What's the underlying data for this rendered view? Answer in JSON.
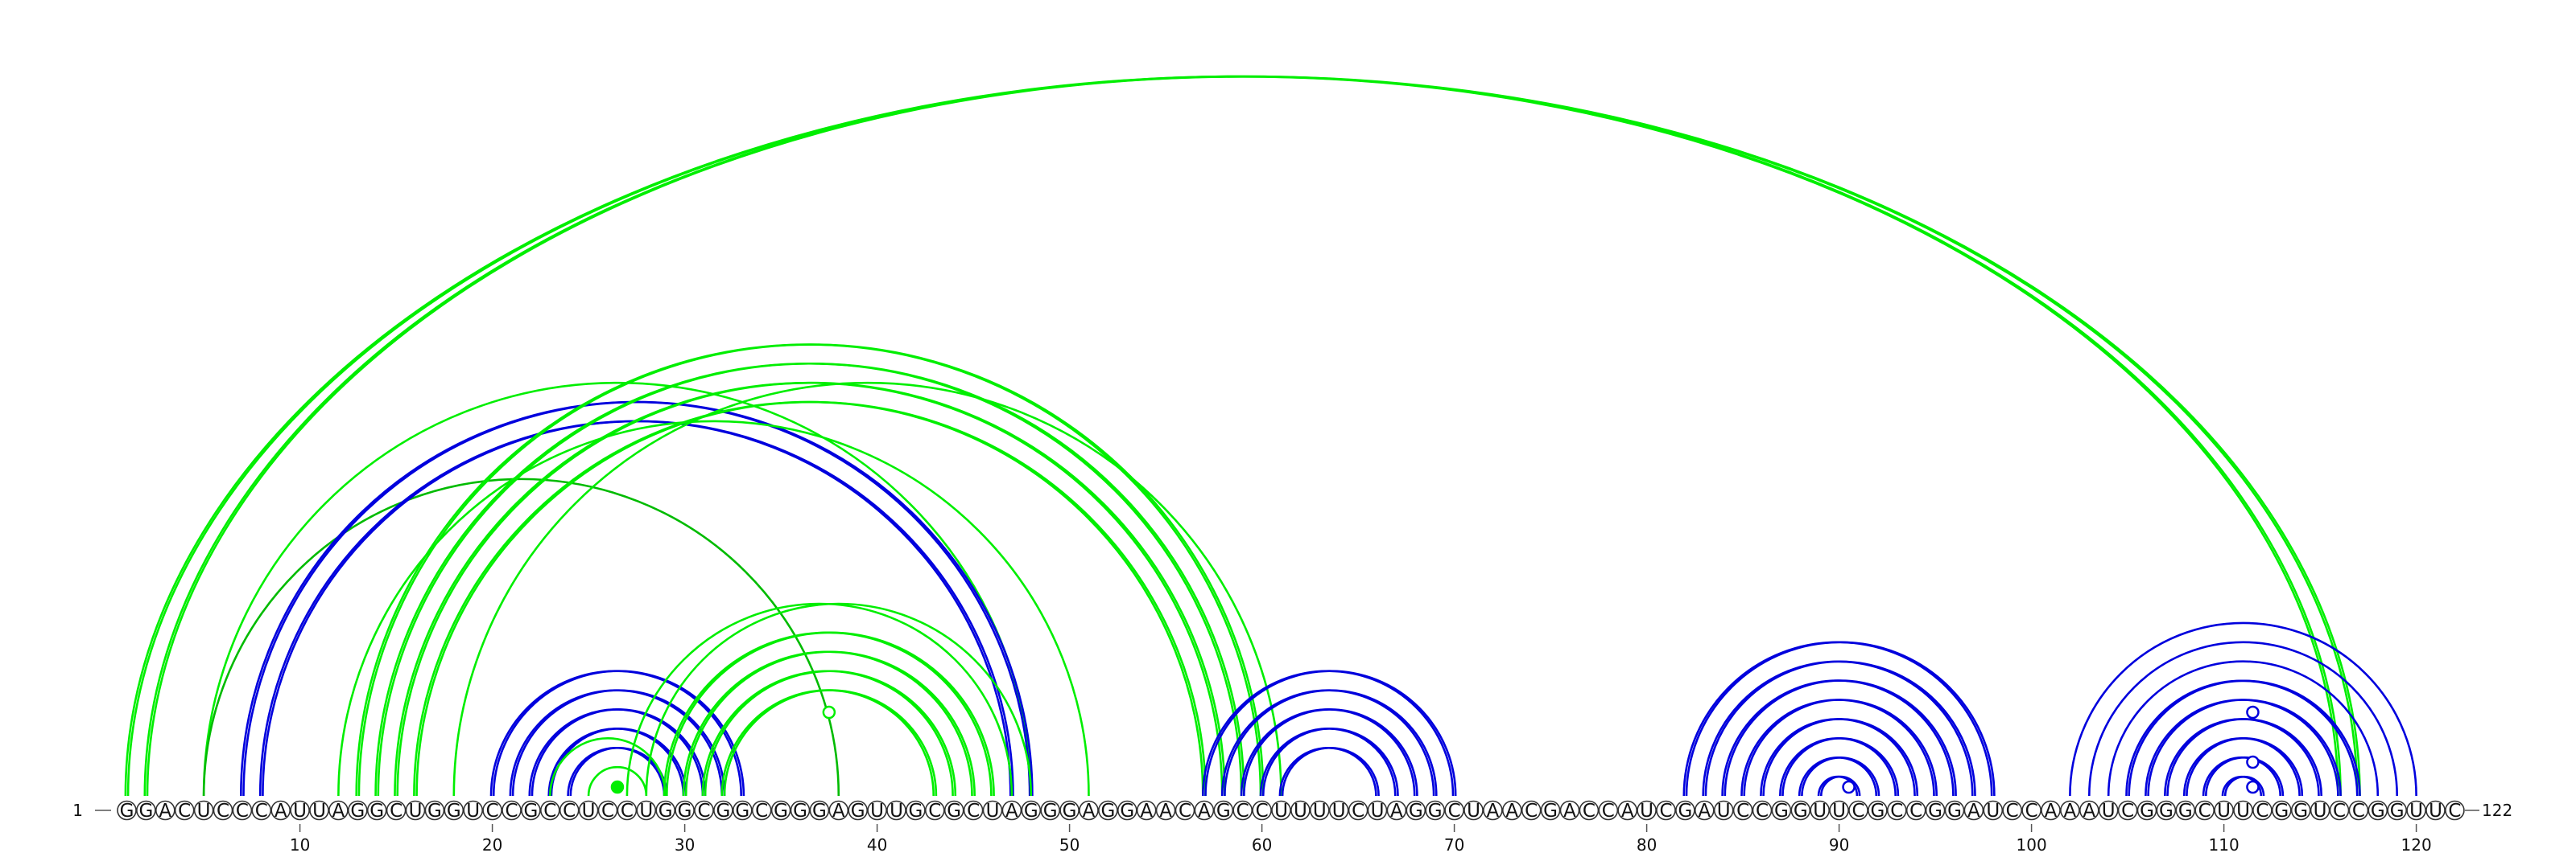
{
  "sequence": "GGACUCCCAUUAGGCUGGUCCGCCUCCUGGCGGCGGGAGUUGCGCUAGGGAGGAACAGCCUUUUCUAGGCUAACGACCAUCGAUCCGGUUCGCCGGAUCCAAAUCGGGCUUCGGUCCGGUUC",
  "start_label": "1",
  "end_label": "122",
  "ticks": [
    10,
    20,
    30,
    40,
    50,
    60,
    70,
    80,
    90,
    100,
    110,
    120
  ],
  "colors": {
    "green": "#00ee00",
    "blue": "#0000dd",
    "dark_green": "#00bb00"
  },
  "arc_groups": [
    {
      "color": "green",
      "width": 3,
      "pairs": [
        [
          1,
          117
        ],
        [
          2,
          116
        ]
      ],
      "double": true
    },
    {
      "color": "green",
      "width": 1,
      "pairs": [
        [
          5,
          48
        ]
      ]
    },
    {
      "color": "dark_green",
      "width": 1,
      "pairs": [
        [
          5,
          38
        ]
      ]
    },
    {
      "color": "blue",
      "width": 2,
      "pairs": [
        [
          7,
          48
        ],
        [
          8,
          47
        ]
      ],
      "double": true
    },
    {
      "color": "green",
      "width": 1,
      "pairs": [
        [
          12,
          51
        ]
      ]
    },
    {
      "color": "green",
      "width": 2,
      "pairs": [
        [
          13,
          60
        ],
        [
          14,
          59
        ],
        [
          15,
          58
        ],
        [
          16,
          57
        ]
      ],
      "double": true
    },
    {
      "color": "green",
      "width": 1,
      "pairs": [
        [
          18,
          61
        ]
      ]
    },
    {
      "color": "blue",
      "width": 2,
      "pairs": [
        [
          20,
          33
        ],
        [
          21,
          32
        ],
        [
          22,
          31
        ],
        [
          23,
          30
        ],
        [
          24,
          29
        ]
      ],
      "double": true
    },
    {
      "color": "green",
      "width": 2,
      "pairs": [
        [
          25,
          28
        ],
        [
          23,
          29
        ]
      ],
      "double": false
    },
    {
      "color": "green",
      "width": 2,
      "pairs": [
        [
          29,
          46
        ],
        [
          30,
          45
        ],
        [
          31,
          44
        ],
        [
          32,
          43
        ]
      ],
      "double": true
    },
    {
      "color": "green",
      "width": 1,
      "pairs": [
        [
          28,
          48
        ],
        [
          27,
          47
        ]
      ]
    },
    {
      "color": "blue",
      "width": 2,
      "pairs": [
        [
          57,
          70
        ],
        [
          58,
          69
        ],
        [
          59,
          68
        ],
        [
          60,
          67
        ],
        [
          61,
          66
        ]
      ],
      "double": true
    },
    {
      "color": "blue",
      "width": 2,
      "pairs": [
        [
          82,
          98
        ],
        [
          83,
          97
        ],
        [
          84,
          96
        ],
        [
          85,
          95
        ],
        [
          86,
          94
        ],
        [
          87,
          93
        ],
        [
          88,
          92
        ],
        [
          89,
          91
        ]
      ],
      "double": true
    },
    {
      "color": "blue",
      "width": 1,
      "pairs": [
        [
          102,
          120
        ],
        [
          103,
          119
        ],
        [
          104,
          118
        ]
      ]
    },
    {
      "color": "blue",
      "width": 2,
      "pairs": [
        [
          105,
          117
        ],
        [
          106,
          116
        ],
        [
          107,
          115
        ],
        [
          108,
          114
        ],
        [
          109,
          113
        ],
        [
          110,
          112
        ]
      ],
      "double": true
    }
  ],
  "loop_markers": [
    {
      "pos": 26.5,
      "level": 1,
      "color": "green",
      "filled": true
    },
    {
      "pos": 37.5,
      "level": 4,
      "color": "green",
      "filled": false
    },
    {
      "pos": 90.5,
      "level": 1,
      "color": "blue",
      "filled": false
    },
    {
      "pos": 111.5,
      "level": 1,
      "color": "blue",
      "filled": false
    },
    {
      "pos": 111.5,
      "level": 2,
      "color": "blue",
      "filled": false
    },
    {
      "pos": 111.5,
      "level": 4,
      "color": "blue",
      "filled": false
    }
  ]
}
